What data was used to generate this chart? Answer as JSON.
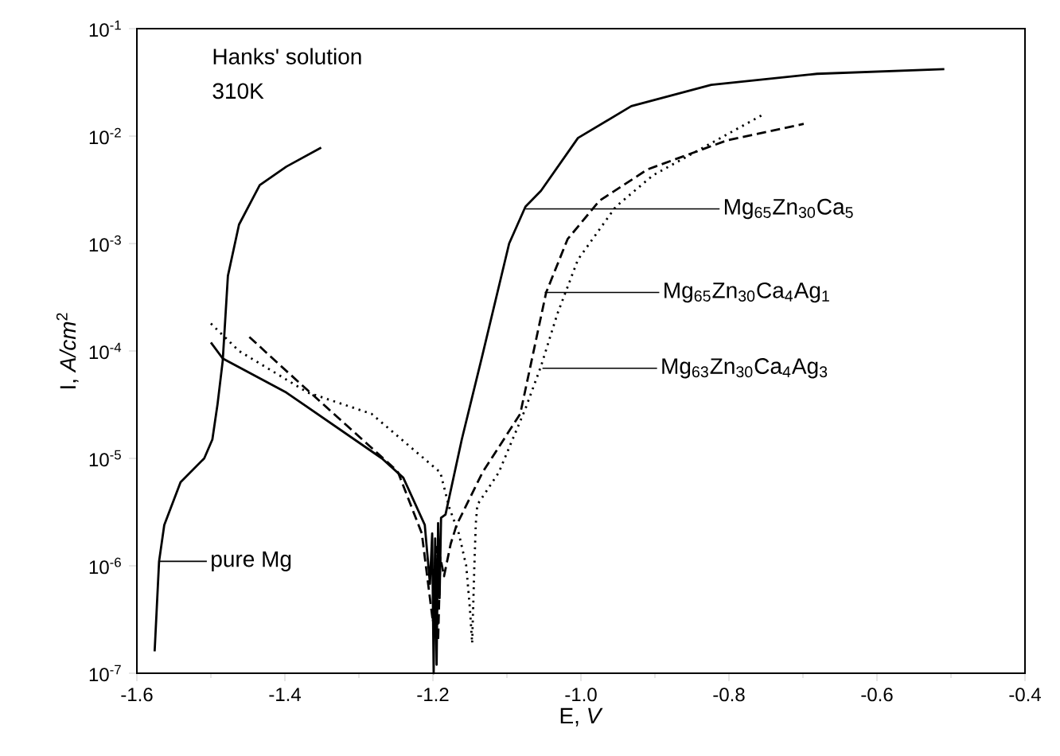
{
  "chart_data": {
    "type": "line",
    "xlabel": "E, *V*",
    "ylabel": "I, *A/cm*$^{2}$",
    "log": "y",
    "grid": false,
    "xlim": [
      -1.6,
      -0.4
    ],
    "xticks": [
      -1.6,
      -1.4,
      -1.2,
      {
        "value": -1.0,
        "label": "-1.0"
      },
      -0.8,
      -0.6,
      -0.4
    ],
    "ylim": [
      1e-07,
      0.1
    ],
    "yticks": [
      {
        "value": 1e-07,
        "label": "10$^{-7}$"
      },
      {
        "value": 1e-06,
        "label": "10$^{-6}$"
      },
      {
        "value": 1e-05,
        "label": "10$^{-5}$"
      },
      {
        "value": 0.0001,
        "label": "10$^{-4}$"
      },
      {
        "value": 0.001,
        "label": "10$^{-3}$"
      },
      {
        "value": 0.01,
        "label": "10$^{-2}$"
      },
      {
        "value": 0.1,
        "label": "10$^{-1}$"
      }
    ],
    "series": [
      {
        "color": "#000000",
        "line_style": "solid",
        "x": [
          -1.576,
          -1.57,
          -1.563,
          -1.541,
          -1.509,
          -1.498,
          -1.491,
          -1.484,
          -1.477,
          -1.462,
          -1.434,
          -1.398,
          -1.351
        ],
        "values": [
          1.6e-07,
          1.1e-06,
          2.4e-06,
          6e-06,
          1e-05,
          1.5e-05,
          3.2e-05,
          8.1e-05,
          0.0005,
          0.0015,
          0.0035,
          0.0052,
          0.0078
        ]
      },
      {
        "color": "#000000",
        "line_style": "solid",
        "x": [
          -1.5,
          -1.484,
          -1.398,
          -1.269,
          -1.24,
          -1.211,
          -1.204,
          -1.201,
          -1.199,
          -1.197,
          -1.195,
          -1.193,
          -1.191,
          -1.189,
          -1.183,
          -1.161,
          -1.133,
          -1.097,
          -1.075,
          -1.054,
          -1.004,
          -0.932,
          -0.824,
          -0.681,
          -0.509
        ],
        "values": [
          0.00012,
          8.5e-05,
          4.1e-05,
          1e-05,
          6.6e-06,
          2.4e-06,
          6.8e-07,
          2e-06,
          1e-07,
          1.8e-06,
          1.2e-07,
          2.5e-06,
          5e-07,
          2.8e-06,
          3e-06,
          1.5e-05,
          9.2e-05,
          0.001,
          0.0022,
          0.0031,
          0.0096,
          0.019,
          0.03,
          0.038,
          0.042
        ]
      },
      {
        "color": "#000000",
        "line_style": "dashed",
        "x": [
          -1.448,
          -1.405,
          -1.319,
          -1.254,
          -1.247,
          -1.215,
          -1.2,
          -1.196,
          -1.193,
          -1.19,
          -1.185,
          -1.176,
          -1.168,
          -1.133,
          -1.082,
          -1.047,
          -1.018,
          -0.975,
          -0.91,
          -0.803,
          -0.699
        ],
        "values": [
          0.000135,
          7.2e-05,
          2.1e-05,
          8.3e-06,
          7.4e-06,
          2e-06,
          3e-07,
          1.5e-06,
          2e-07,
          1.2e-06,
          8e-07,
          1.6e-06,
          2.4e-06,
          7.4e-06,
          2.6e-05,
          0.00035,
          0.0011,
          0.0025,
          0.0049,
          0.0091,
          0.013
        ]
      },
      {
        "color": "#000000",
        "line_style": "dotted",
        "x": [
          -1.5,
          -1.462,
          -1.369,
          -1.283,
          -1.19,
          -1.178,
          -1.165,
          -1.155,
          -1.15,
          -1.147,
          -1.144,
          -1.142,
          -1.14,
          -1.111,
          -1.075,
          -1.054,
          -1.032,
          -1.004,
          -0.953,
          -0.903,
          -0.753
        ],
        "values": [
          0.00018,
          0.0001,
          4.1e-05,
          2.6e-05,
          7.4e-06,
          3.5e-06,
          2e-06,
          1e-06,
          4e-07,
          1.9e-07,
          1e-06,
          2.5e-06,
          3.7e-06,
          7.4e-06,
          2.9e-05,
          7.2e-05,
          0.00022,
          0.00071,
          0.0022,
          0.0043,
          0.016
        ]
      }
    ],
    "annotations": [
      "Hanks' solution",
      "310K",
      {
        "text": "pure Mg",
        "x": -1.57,
        "y": 1.1e-06
      },
      {
        "text": "Mg$_{65}$Zn$_{30}$Ca$_{5}$",
        "x": -1.075,
        "y": 0.0021
      },
      {
        "text": "Mg$_{65}$Zn$_{30}$Ca$_{4}$Ag$_{1}$",
        "x": -1.049,
        "y": 0.00035
      },
      {
        "text": "Mg$_{63}$Zn$_{30}$Ca$_{4}$Ag$_{3}$",
        "x": -1.052,
        "y": 6.9e-05
      }
    ]
  }
}
